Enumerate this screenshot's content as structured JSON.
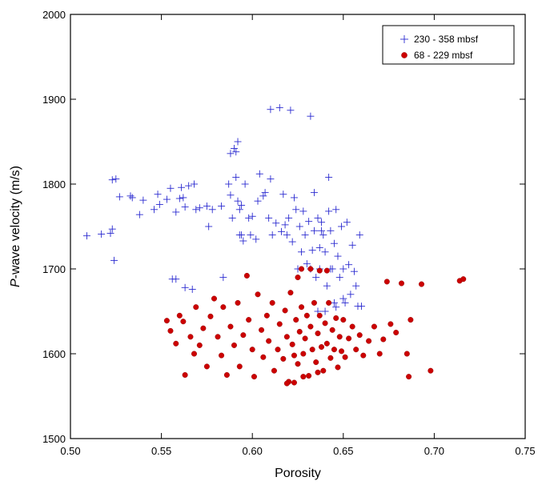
{
  "chart_data": {
    "type": "scatter",
    "title": "",
    "xlabel": "Porosity",
    "ylabel_italic": "P",
    "ylabel_rest": "-wave velocity (m/s)",
    "xlim": [
      0.5,
      0.75
    ],
    "ylim": [
      1500,
      2000
    ],
    "xticks": [
      "0.50",
      "0.55",
      "0.60",
      "0.65",
      "0.70",
      "0.75"
    ],
    "yticks": [
      "1500",
      "1600",
      "1700",
      "1800",
      "1900",
      "2000"
    ],
    "grid": false,
    "legend_position": "top-right",
    "series": [
      {
        "name": "230 - 358 mbsf",
        "marker": "plus",
        "color": "#2b2bd0",
        "points": [
          [
            0.509,
            1739
          ],
          [
            0.517,
            1741
          ],
          [
            0.522,
            1742
          ],
          [
            0.523,
            1747
          ],
          [
            0.524,
            1710
          ],
          [
            0.523,
            1805
          ],
          [
            0.525,
            1806
          ],
          [
            0.527,
            1785
          ],
          [
            0.533,
            1786
          ],
          [
            0.534,
            1784
          ],
          [
            0.538,
            1764
          ],
          [
            0.54,
            1781
          ],
          [
            0.546,
            1770
          ],
          [
            0.548,
            1788
          ],
          [
            0.549,
            1776
          ],
          [
            0.553,
            1782
          ],
          [
            0.555,
            1795
          ],
          [
            0.556,
            1688
          ],
          [
            0.558,
            1688
          ],
          [
            0.558,
            1767
          ],
          [
            0.56,
            1783
          ],
          [
            0.561,
            1796
          ],
          [
            0.562,
            1784
          ],
          [
            0.563,
            1773
          ],
          [
            0.563,
            1678
          ],
          [
            0.565,
            1798
          ],
          [
            0.567,
            1676
          ],
          [
            0.568,
            1800
          ],
          [
            0.569,
            1770
          ],
          [
            0.571,
            1772
          ],
          [
            0.575,
            1774
          ],
          [
            0.576,
            1750
          ],
          [
            0.578,
            1770
          ],
          [
            0.583,
            1774
          ],
          [
            0.584,
            1690
          ],
          [
            0.587,
            1800
          ],
          [
            0.588,
            1836
          ],
          [
            0.588,
            1787
          ],
          [
            0.589,
            1760
          ],
          [
            0.59,
            1842
          ],
          [
            0.591,
            1838
          ],
          [
            0.591,
            1808
          ],
          [
            0.592,
            1850
          ],
          [
            0.592,
            1780
          ],
          [
            0.593,
            1770
          ],
          [
            0.593,
            1740
          ],
          [
            0.594,
            1740
          ],
          [
            0.594,
            1775
          ],
          [
            0.595,
            1733
          ],
          [
            0.596,
            1800
          ],
          [
            0.598,
            1760
          ],
          [
            0.599,
            1740
          ],
          [
            0.6,
            1762
          ],
          [
            0.602,
            1735
          ],
          [
            0.603,
            1780
          ],
          [
            0.604,
            1812
          ],
          [
            0.606,
            1786
          ],
          [
            0.607,
            1790
          ],
          [
            0.609,
            1760
          ],
          [
            0.61,
            1888
          ],
          [
            0.61,
            1806
          ],
          [
            0.611,
            1740
          ],
          [
            0.613,
            1754
          ],
          [
            0.615,
            1890
          ],
          [
            0.616,
            1744
          ],
          [
            0.617,
            1788
          ],
          [
            0.618,
            1752
          ],
          [
            0.619,
            1740
          ],
          [
            0.62,
            1760
          ],
          [
            0.621,
            1887
          ],
          [
            0.622,
            1732
          ],
          [
            0.623,
            1784
          ],
          [
            0.624,
            1770
          ],
          [
            0.625,
            1700
          ],
          [
            0.626,
            1750
          ],
          [
            0.627,
            1720
          ],
          [
            0.628,
            1768
          ],
          [
            0.629,
            1740
          ],
          [
            0.63,
            1706
          ],
          [
            0.631,
            1756
          ],
          [
            0.632,
            1880
          ],
          [
            0.632,
            1700
          ],
          [
            0.633,
            1722
          ],
          [
            0.634,
            1790
          ],
          [
            0.634,
            1745
          ],
          [
            0.635,
            1690
          ],
          [
            0.636,
            1760
          ],
          [
            0.637,
            1725
          ],
          [
            0.637,
            1700
          ],
          [
            0.638,
            1755
          ],
          [
            0.639,
            1740
          ],
          [
            0.64,
            1720
          ],
          [
            0.641,
            1680
          ],
          [
            0.642,
            1768
          ],
          [
            0.642,
            1808
          ],
          [
            0.643,
            1745
          ],
          [
            0.644,
            1700
          ],
          [
            0.645,
            1660
          ],
          [
            0.645,
            1730
          ],
          [
            0.646,
            1770
          ],
          [
            0.647,
            1715
          ],
          [
            0.648,
            1690
          ],
          [
            0.649,
            1750
          ],
          [
            0.65,
            1700
          ],
          [
            0.651,
            1660
          ],
          [
            0.652,
            1755
          ],
          [
            0.653,
            1705
          ],
          [
            0.654,
            1670
          ],
          [
            0.655,
            1728
          ],
          [
            0.656,
            1697
          ],
          [
            0.657,
            1680
          ],
          [
            0.658,
            1656
          ],
          [
            0.659,
            1740
          ],
          [
            0.66,
            1656
          ],
          [
            0.636,
            1650
          ],
          [
            0.64,
            1650
          ],
          [
            0.646,
            1655
          ],
          [
            0.65,
            1665
          ],
          [
            0.643,
            1700
          ],
          [
            0.638,
            1745
          ]
        ]
      },
      {
        "name": "68 - 229 mbsf",
        "marker": "circle",
        "color": "#cc0000",
        "points": [
          [
            0.553,
            1639
          ],
          [
            0.555,
            1627
          ],
          [
            0.558,
            1612
          ],
          [
            0.56,
            1645
          ],
          [
            0.562,
            1638
          ],
          [
            0.563,
            1575
          ],
          [
            0.566,
            1620
          ],
          [
            0.568,
            1600
          ],
          [
            0.569,
            1655
          ],
          [
            0.571,
            1610
          ],
          [
            0.573,
            1630
          ],
          [
            0.575,
            1585
          ],
          [
            0.577,
            1644
          ],
          [
            0.579,
            1665
          ],
          [
            0.581,
            1620
          ],
          [
            0.583,
            1598
          ],
          [
            0.584,
            1655
          ],
          [
            0.586,
            1575
          ],
          [
            0.588,
            1632
          ],
          [
            0.59,
            1610
          ],
          [
            0.592,
            1660
          ],
          [
            0.593,
            1585
          ],
          [
            0.595,
            1622
          ],
          [
            0.597,
            1692
          ],
          [
            0.598,
            1640
          ],
          [
            0.6,
            1605
          ],
          [
            0.601,
            1573
          ],
          [
            0.603,
            1670
          ],
          [
            0.605,
            1628
          ],
          [
            0.606,
            1596
          ],
          [
            0.608,
            1645
          ],
          [
            0.609,
            1615
          ],
          [
            0.611,
            1660
          ],
          [
            0.612,
            1580
          ],
          [
            0.614,
            1605
          ],
          [
            0.615,
            1635
          ],
          [
            0.617,
            1594
          ],
          [
            0.618,
            1651
          ],
          [
            0.619,
            1620
          ],
          [
            0.62,
            1567
          ],
          [
            0.621,
            1672
          ],
          [
            0.622,
            1611
          ],
          [
            0.623,
            1598
          ],
          [
            0.624,
            1640
          ],
          [
            0.625,
            1588
          ],
          [
            0.626,
            1626
          ],
          [
            0.627,
            1655
          ],
          [
            0.628,
            1600
          ],
          [
            0.629,
            1618
          ],
          [
            0.63,
            1645
          ],
          [
            0.631,
            1574
          ],
          [
            0.632,
            1632
          ],
          [
            0.633,
            1605
          ],
          [
            0.634,
            1660
          ],
          [
            0.635,
            1590
          ],
          [
            0.636,
            1624
          ],
          [
            0.637,
            1645
          ],
          [
            0.638,
            1608
          ],
          [
            0.639,
            1580
          ],
          [
            0.64,
            1636
          ],
          [
            0.641,
            1612
          ],
          [
            0.642,
            1660
          ],
          [
            0.643,
            1595
          ],
          [
            0.644,
            1628
          ],
          [
            0.645,
            1605
          ],
          [
            0.646,
            1642
          ],
          [
            0.647,
            1584
          ],
          [
            0.648,
            1620
          ],
          [
            0.649,
            1603
          ],
          [
            0.65,
            1640
          ],
          [
            0.651,
            1596
          ],
          [
            0.653,
            1618
          ],
          [
            0.655,
            1632
          ],
          [
            0.657,
            1605
          ],
          [
            0.659,
            1622
          ],
          [
            0.661,
            1598
          ],
          [
            0.664,
            1615
          ],
          [
            0.667,
            1632
          ],
          [
            0.67,
            1600
          ],
          [
            0.672,
            1617
          ],
          [
            0.674,
            1685
          ],
          [
            0.676,
            1635
          ],
          [
            0.679,
            1625
          ],
          [
            0.682,
            1683
          ],
          [
            0.685,
            1600
          ],
          [
            0.686,
            1573
          ],
          [
            0.687,
            1640
          ],
          [
            0.693,
            1682
          ],
          [
            0.698,
            1580
          ],
          [
            0.714,
            1686
          ],
          [
            0.716,
            1688
          ],
          [
            0.625,
            1690
          ],
          [
            0.627,
            1700
          ],
          [
            0.632,
            1700
          ],
          [
            0.637,
            1698
          ],
          [
            0.641,
            1698
          ],
          [
            0.619,
            1565
          ],
          [
            0.623,
            1566
          ],
          [
            0.628,
            1573
          ],
          [
            0.636,
            1578
          ]
        ]
      }
    ]
  }
}
